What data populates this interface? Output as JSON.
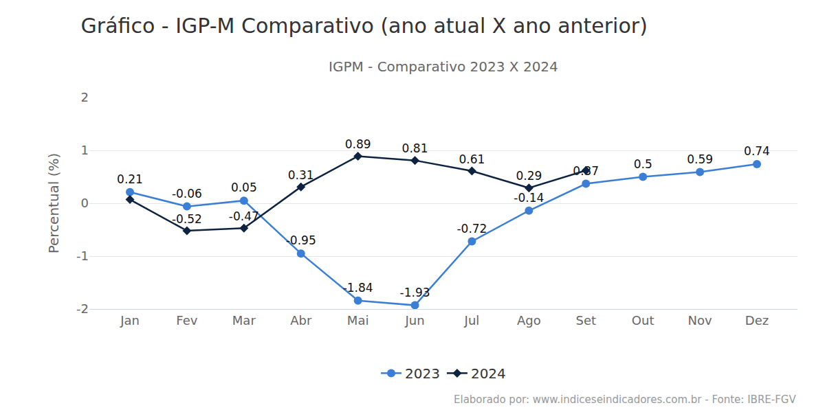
{
  "chart_data": {
    "type": "line",
    "title": "Gráfico - IGP-M Comparativo (ano atual X ano anterior)",
    "subtitle": "IGPM - Comparativo 2023 X 2024",
    "source": "Elaborado por: www.indiceseindicadores.com.br - Fonte: IBRE-FGV",
    "y_label": "Percentual (%)",
    "categories": [
      "Jan",
      "Fev",
      "Mar",
      "Abr",
      "Mai",
      "Jun",
      "Jul",
      "Ago",
      "Set",
      "Out",
      "Nov",
      "Dez"
    ],
    "series": [
      {
        "name": "2023",
        "color": "#3a7fd5",
        "marker": "circle",
        "values": [
          0.21,
          -0.06,
          0.05,
          -0.95,
          -1.84,
          -1.93,
          -0.72,
          -0.14,
          0.37,
          0.5,
          0.59,
          0.74
        ],
        "value_labels": [
          "0.21",
          "-0.06",
          "0.05",
          "-0.95",
          "-1.84",
          "-1.93",
          "-0.72",
          "-0.14",
          "0.37",
          "0.5",
          "0.59",
          "0.74"
        ]
      },
      {
        "name": "2024",
        "color": "#0d2340",
        "marker": "diamond",
        "values": [
          0.07,
          -0.52,
          -0.47,
          0.31,
          0.89,
          0.81,
          0.61,
          0.29,
          0.62,
          null,
          null,
          null
        ],
        "value_labels": [
          null,
          "-0.52",
          "-0.47",
          "0.31",
          "0.89",
          "0.81",
          "0.61",
          "0.29",
          null,
          null,
          null,
          null
        ]
      }
    ],
    "ylim": [
      -2,
      2
    ],
    "yticks": [
      -2,
      -1,
      0,
      1,
      2
    ],
    "grid": true,
    "legend": "bottom",
    "data_labels": true
  }
}
